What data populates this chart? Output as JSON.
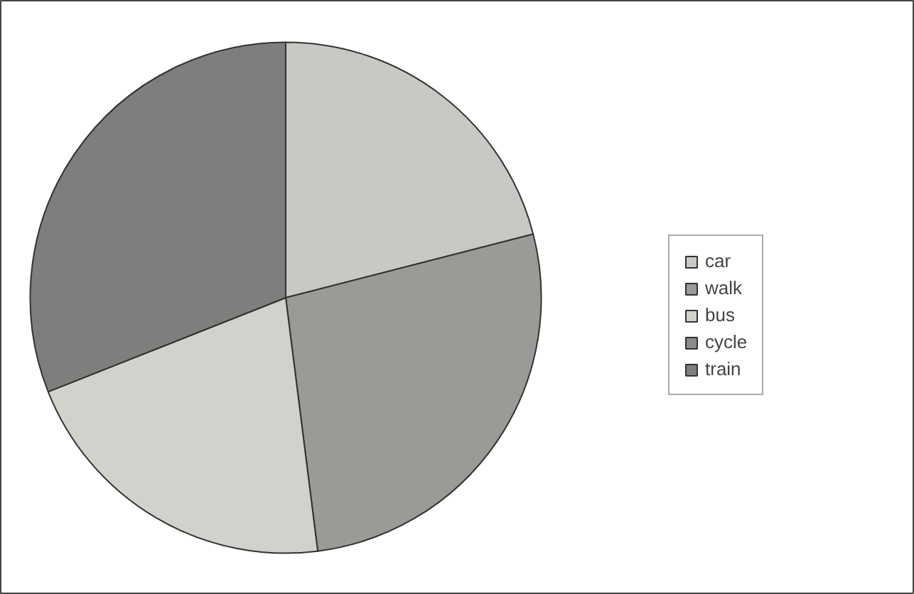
{
  "chart_data": {
    "type": "pie",
    "categories": [
      "car",
      "walk",
      "bus",
      "cycle",
      "train"
    ],
    "values": [
      21,
      27,
      21,
      0,
      31
    ],
    "colors": [
      "#c8c8c4",
      "#9a9a96",
      "#d2d2cd",
      "#8a8a88",
      "#7e7e7c"
    ],
    "legend": "right"
  }
}
